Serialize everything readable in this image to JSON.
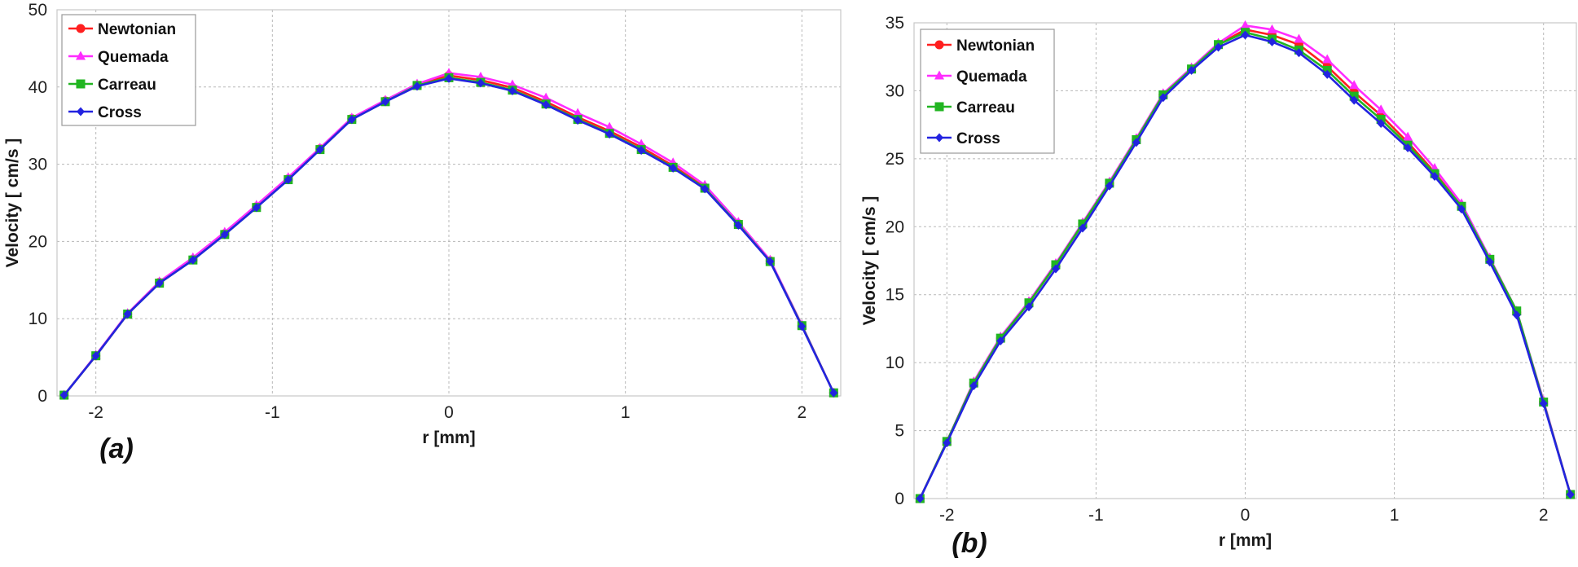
{
  "chart_data": [
    {
      "type": "line",
      "panel_label": "(a)",
      "xlabel": "r [mm]",
      "ylabel": "Velocity [ cm/s ]",
      "xlim": [
        -2.22,
        2.22
      ],
      "ylim": [
        0,
        50
      ],
      "xticks": [
        -2,
        -1,
        0,
        1,
        2
      ],
      "yticks": [
        0,
        10,
        20,
        30,
        40,
        50
      ],
      "grid": true,
      "legend_position": "top-left",
      "x": [
        -2.18,
        -2.0,
        -1.82,
        -1.64,
        -1.45,
        -1.27,
        -1.09,
        -0.91,
        -0.73,
        -0.55,
        -0.36,
        -0.18,
        0.0,
        0.18,
        0.36,
        0.55,
        0.73,
        0.91,
        1.09,
        1.27,
        1.45,
        1.64,
        1.82,
        2.0,
        2.18
      ],
      "series": [
        {
          "name": "Newtonian",
          "color": "#ff1f1f",
          "marker": "circle",
          "values": [
            0.1,
            5.2,
            10.6,
            14.7,
            17.7,
            21.0,
            24.5,
            28.1,
            32.0,
            35.9,
            38.2,
            40.2,
            41.5,
            40.9,
            39.9,
            38.1,
            36.1,
            34.3,
            32.2,
            29.8,
            27.0,
            22.3,
            17.5,
            9.1,
            0.4
          ]
        },
        {
          "name": "Quemada",
          "color": "#ff2cff",
          "marker": "triangle",
          "values": [
            0.1,
            5.3,
            10.7,
            14.8,
            17.9,
            21.2,
            24.7,
            28.3,
            32.1,
            36.0,
            38.3,
            40.4,
            41.8,
            41.3,
            40.3,
            38.6,
            36.6,
            34.8,
            32.6,
            30.2,
            27.3,
            22.5,
            17.6,
            9.2,
            0.4
          ]
        },
        {
          "name": "Carreau",
          "color": "#21b521",
          "marker": "square",
          "values": [
            0.1,
            5.2,
            10.6,
            14.6,
            17.6,
            20.9,
            24.4,
            28.0,
            31.9,
            35.8,
            38.1,
            40.2,
            41.2,
            40.6,
            39.6,
            37.8,
            35.8,
            34.0,
            31.9,
            29.6,
            26.9,
            22.2,
            17.4,
            9.1,
            0.4
          ]
        },
        {
          "name": "Cross",
          "color": "#2323e0",
          "marker": "diamond",
          "values": [
            0.1,
            5.2,
            10.6,
            14.6,
            17.6,
            20.9,
            24.4,
            28.0,
            31.9,
            35.8,
            38.1,
            40.1,
            41.1,
            40.5,
            39.5,
            37.7,
            35.7,
            33.9,
            31.8,
            29.5,
            26.8,
            22.1,
            17.4,
            9.0,
            0.4
          ]
        }
      ]
    },
    {
      "type": "line",
      "panel_label": "(b)",
      "xlabel": "r [mm]",
      "ylabel": "Velocity [ cm/s ]",
      "xlim": [
        -2.22,
        2.22
      ],
      "ylim": [
        0,
        35
      ],
      "xticks": [
        -2,
        -1,
        0,
        1,
        2
      ],
      "yticks": [
        0,
        5,
        10,
        15,
        20,
        25,
        30,
        35
      ],
      "grid": true,
      "legend_position": "top-left",
      "x": [
        -2.18,
        -2.0,
        -1.82,
        -1.64,
        -1.45,
        -1.27,
        -1.09,
        -0.91,
        -0.73,
        -0.55,
        -0.36,
        -0.18,
        0.0,
        0.18,
        0.36,
        0.55,
        0.73,
        0.91,
        1.09,
        1.27,
        1.45,
        1.64,
        1.82,
        2.0,
        2.18
      ],
      "series": [
        {
          "name": "Newtonian",
          "color": "#ff1f1f",
          "marker": "circle",
          "values": [
            0.0,
            4.2,
            8.5,
            11.8,
            14.4,
            17.2,
            20.2,
            23.2,
            26.4,
            29.7,
            31.6,
            33.4,
            34.5,
            34.1,
            33.4,
            31.8,
            29.9,
            28.2,
            26.2,
            24.0,
            21.5,
            17.6,
            13.7,
            7.1,
            0.3
          ]
        },
        {
          "name": "Quemada",
          "color": "#ff2cff",
          "marker": "triangle",
          "values": [
            0.0,
            4.2,
            8.6,
            11.9,
            14.5,
            17.3,
            20.3,
            23.3,
            26.5,
            29.8,
            31.7,
            33.5,
            34.8,
            34.5,
            33.8,
            32.3,
            30.4,
            28.6,
            26.6,
            24.3,
            21.7,
            17.7,
            13.8,
            7.2,
            0.3
          ]
        },
        {
          "name": "Carreau",
          "color": "#21b521",
          "marker": "square",
          "values": [
            0.0,
            4.2,
            8.5,
            11.8,
            14.4,
            17.2,
            20.2,
            23.2,
            26.4,
            29.7,
            31.6,
            33.4,
            34.3,
            33.8,
            33.0,
            31.5,
            29.6,
            27.9,
            26.0,
            23.9,
            21.5,
            17.6,
            13.8,
            7.1,
            0.3
          ]
        },
        {
          "name": "Cross",
          "color": "#2323e0",
          "marker": "diamond",
          "values": [
            0.0,
            4.1,
            8.3,
            11.6,
            14.1,
            16.9,
            19.9,
            23.0,
            26.2,
            29.5,
            31.5,
            33.2,
            34.1,
            33.6,
            32.8,
            31.2,
            29.3,
            27.6,
            25.8,
            23.7,
            21.3,
            17.4,
            13.5,
            7.0,
            0.3
          ]
        }
      ]
    }
  ]
}
